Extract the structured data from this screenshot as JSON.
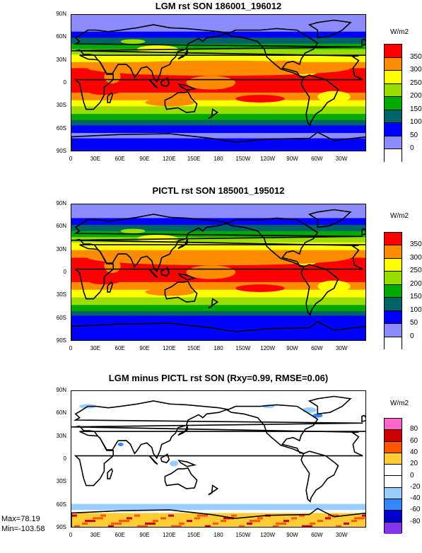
{
  "panels": [
    {
      "title": "LGM rst SON 186001_196012",
      "unit": "W/m2",
      "levels": [
        "350",
        "300",
        "250",
        "200",
        "150",
        "100",
        "50",
        "0"
      ],
      "colors": [
        "#ff0000",
        "#ff8c00",
        "#ffff00",
        "#99dd00",
        "#00aa00",
        "#006464",
        "#0000ff",
        "#8c8cff",
        "#ffffff"
      ]
    },
    {
      "title": "PICTL rst SON 185001_195012",
      "unit": "W/m2",
      "levels": [
        "350",
        "300",
        "250",
        "200",
        "150",
        "100",
        "50",
        "0"
      ],
      "colors": [
        "#ff0000",
        "#ff8c00",
        "#ffff00",
        "#99dd00",
        "#00aa00",
        "#006464",
        "#0000ff",
        "#8c8cff",
        "#ffffff"
      ]
    },
    {
      "title": "LGM minus PICTL rst SON (Rxy=0.99, RMSE=0.06)",
      "unit": "W/m2",
      "levels": [
        "80",
        "60",
        "40",
        "20",
        "0",
        "-20",
        "-40",
        "-60",
        "-80"
      ],
      "colors": [
        "#ff66cc",
        "#cc0000",
        "#ff5500",
        "#ffcc33",
        "#ffffff",
        "#ffffff",
        "#99ccff",
        "#3388ff",
        "#0000cc",
        "#8833ee"
      ]
    }
  ],
  "lat_ticks": [
    "90N",
    "60N",
    "30N",
    "0",
    "30S",
    "60S",
    "90S"
  ],
  "lon_ticks": [
    "0",
    "30E",
    "60E",
    "90E",
    "120E",
    "150E",
    "180",
    "150W",
    "120W",
    "90W",
    "60W",
    "30W"
  ],
  "stats": {
    "max": "Max=78.19",
    "min": "Min=-103.58"
  }
}
